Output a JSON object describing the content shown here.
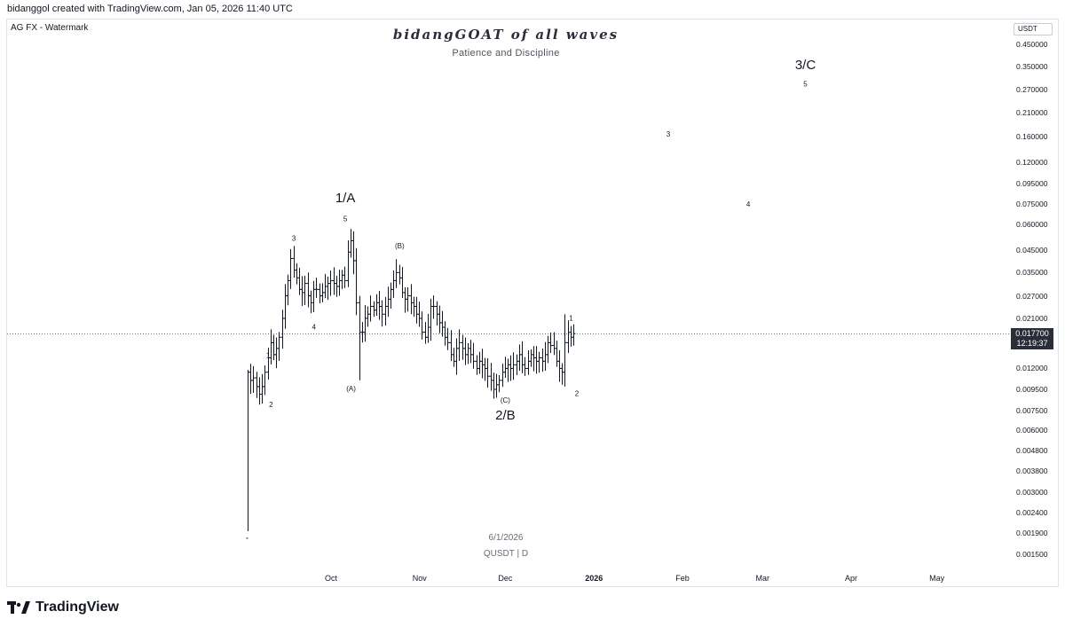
{
  "header": {
    "credit": "bidanggol created with TradingView.com, Jan 05, 2026 11:40 UTC",
    "symbol_label": "AG FX - Watermark"
  },
  "watermark": {
    "title": "bidangGOAT of all waves",
    "subtitle": "Patience and Discipline",
    "date": "6/1/2026",
    "pair": "QUSDT | D"
  },
  "brand": {
    "name": "TradingView",
    "icon": "tradingview-logo-icon"
  },
  "colors": {
    "bars": "#131722",
    "price_tag_bg": "#2a2e39",
    "axis_text": "#131722"
  },
  "chart_data": {
    "type": "ohlc",
    "scale": "log",
    "currency": "USDT",
    "ylim": [
      0.0013,
      0.5
    ],
    "y_ticks": [
      "0.450000",
      "0.350000",
      "0.270000",
      "0.210000",
      "0.160000",
      "0.120000",
      "0.095000",
      "0.075000",
      "0.060000",
      "0.045000",
      "0.035000",
      "0.027000",
      "0.021000",
      "0.012000",
      "0.009500",
      "0.007500",
      "0.006000",
      "0.004800",
      "0.003800",
      "0.003000",
      "0.002400",
      "0.001900",
      "0.001500"
    ],
    "x_ticks": [
      {
        "label": "Oct",
        "bold": false
      },
      {
        "label": "Nov",
        "bold": false
      },
      {
        "label": "Dec",
        "bold": false
      },
      {
        "label": "2026",
        "bold": true
      },
      {
        "label": "Feb",
        "bold": false
      },
      {
        "label": "Mar",
        "bold": false
      },
      {
        "label": "Apr",
        "bold": false
      },
      {
        "label": "May",
        "bold": false
      }
    ],
    "last_price": "0.017700",
    "countdown": "12:19:37",
    "series_closes": [
      0.0115,
      0.0105,
      0.0108,
      0.0098,
      0.009,
      0.0098,
      0.0115,
      0.0135,
      0.016,
      0.014,
      0.015,
      0.017,
      0.021,
      0.027,
      0.032,
      0.041,
      0.036,
      0.033,
      0.029,
      0.028,
      0.031,
      0.027,
      0.025,
      0.029,
      0.029,
      0.027,
      0.028,
      0.03,
      0.031,
      0.032,
      0.031,
      0.03,
      0.032,
      0.034,
      0.032,
      0.044,
      0.05,
      0.04,
      0.025,
      0.018,
      0.018,
      0.021,
      0.022,
      0.024,
      0.023,
      0.025,
      0.024,
      0.022,
      0.024,
      0.026,
      0.029,
      0.032,
      0.035,
      0.033,
      0.028,
      0.026,
      0.027,
      0.025,
      0.024,
      0.022,
      0.021,
      0.018,
      0.017,
      0.019,
      0.024,
      0.024,
      0.022,
      0.02,
      0.019,
      0.017,
      0.016,
      0.014,
      0.013,
      0.015,
      0.016,
      0.015,
      0.014,
      0.015,
      0.014,
      0.013,
      0.012,
      0.013,
      0.0125,
      0.012,
      0.011,
      0.0105,
      0.0095,
      0.01,
      0.0105,
      0.0115,
      0.012,
      0.0125,
      0.012,
      0.0125,
      0.013,
      0.014,
      0.0125,
      0.012,
      0.013,
      0.014,
      0.0135,
      0.013,
      0.0135,
      0.013,
      0.014,
      0.016,
      0.0155,
      0.015,
      0.013,
      0.012,
      0.0115,
      0.016,
      0.018,
      0.017,
      0.0177
    ],
    "wave_labels": [
      {
        "text": "1",
        "date": "2025-09-09",
        "price": 0.0135
      },
      {
        "text": "2",
        "date": "2025-09-10",
        "price": 0.0078
      },
      {
        "text": "3",
        "date": "2025-09-18",
        "price": 0.05
      },
      {
        "text": "4",
        "date": "2025-09-25",
        "price": 0.0185
      },
      {
        "text": "5",
        "date": "2025-10-06",
        "price": 0.062
      },
      {
        "text": "1/A",
        "date": "2025-10-06",
        "price": 0.077,
        "big": true
      },
      {
        "text": "(A)",
        "date": "2025-10-08",
        "price": 0.0093
      },
      {
        "text": "(B)",
        "date": "2025-10-25",
        "price": 0.046
      },
      {
        "text": "(C)",
        "date": "2025-12-01",
        "price": 0.0082
      },
      {
        "text": "2/B",
        "date": "2025-12-01",
        "price": 0.0068,
        "big": true
      },
      {
        "text": "1",
        "date": "2025-12-24",
        "price": 0.0205
      },
      {
        "text": "2",
        "date": "2025-12-26",
        "price": 0.0088
      },
      {
        "text": "3",
        "date": "2026-01-27",
        "price": 0.16
      },
      {
        "text": "4",
        "date": "2026-02-24",
        "price": 0.073
      },
      {
        "text": "5",
        "date": "2026-03-16",
        "price": 0.28
      },
      {
        "text": "3/C",
        "date": "2026-03-16",
        "price": 0.34,
        "big": true
      }
    ]
  }
}
